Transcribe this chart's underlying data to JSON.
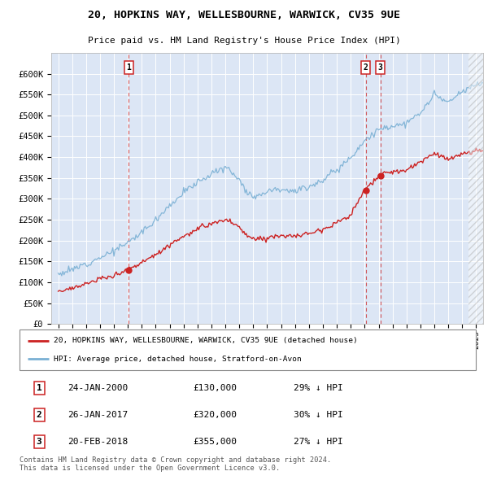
{
  "title": "20, HOPKINS WAY, WELLESBOURNE, WARWICK, CV35 9UE",
  "subtitle": "Price paid vs. HM Land Registry's House Price Index (HPI)",
  "ylim": [
    0,
    650000
  ],
  "yticks": [
    0,
    50000,
    100000,
    150000,
    200000,
    250000,
    300000,
    350000,
    400000,
    450000,
    500000,
    550000,
    600000
  ],
  "plot_bg": "#dce6f5",
  "legend_label_red": "20, HOPKINS WAY, WELLESBOURNE, WARWICK, CV35 9UE (detached house)",
  "legend_label_blue": "HPI: Average price, detached house, Stratford-on-Avon",
  "trans_years": [
    2000.07,
    2017.07,
    2018.13
  ],
  "trans_prices": [
    130000,
    320000,
    355000
  ],
  "footer": "Contains HM Land Registry data © Crown copyright and database right 2024.\nThis data is licensed under the Open Government Licence v3.0.",
  "red_color": "#cc2222",
  "blue_color": "#7ab0d4",
  "table_rows": [
    [
      1,
      "24-JAN-2000",
      "£130,000",
      "29% ↓ HPI"
    ],
    [
      2,
      "26-JAN-2017",
      "£320,000",
      "30% ↓ HPI"
    ],
    [
      3,
      "20-FEB-2018",
      "£355,000",
      "27% ↓ HPI"
    ]
  ]
}
